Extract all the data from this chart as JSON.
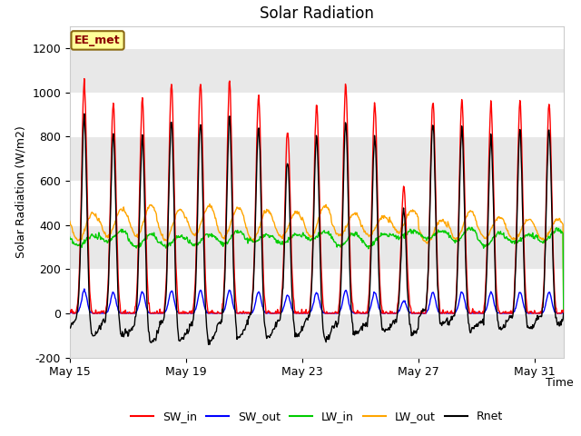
{
  "title": "Solar Radiation",
  "ylabel": "Solar Radiation (W/m2)",
  "xlabel": "Time",
  "ylim": [
    -200,
    1300
  ],
  "yticks": [
    -200,
    0,
    200,
    400,
    600,
    800,
    1000,
    1200
  ],
  "xtick_labels": [
    "May 15",
    "May 19",
    "May 23",
    "May 27",
    "May 31"
  ],
  "xtick_positions": [
    0,
    4,
    8,
    12,
    16
  ],
  "annotation_text": "EE_met",
  "annotation_color": "#8B0000",
  "annotation_bg": "#FFFF99",
  "annotation_border": "#8B6914",
  "colors": {
    "SW_in": "#FF0000",
    "SW_out": "#0000FF",
    "LW_in": "#00CC00",
    "LW_out": "#FFA500",
    "Rnet": "#000000"
  },
  "n_days": 17,
  "points_per_day": 48,
  "bg_color": "#FFFFFF",
  "plot_bg": "#FFFFFF",
  "band_color": "#E8E8E8",
  "grid_color": "#FFFFFF"
}
